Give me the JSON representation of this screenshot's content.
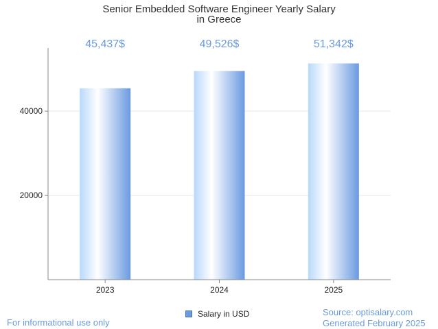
{
  "chart_data": {
    "type": "bar",
    "title_lines": [
      "Senior Embedded Software Engineer Yearly Salary",
      "in Greece"
    ],
    "categories": [
      "2023",
      "2024",
      "2025"
    ],
    "series": [
      {
        "name": "Salary in USD",
        "values": [
          45437,
          49526,
          51342
        ]
      }
    ],
    "data_labels": [
      "45,437$",
      "49,526$",
      "51,342$"
    ],
    "y_ticks": [
      20000,
      40000
    ],
    "ylim": [
      0,
      55000
    ],
    "legend_position": "bottom-center"
  },
  "footer": {
    "left": "For informational use only",
    "source": "Source: optisalary.com",
    "generated": "Generated February 2025"
  },
  "colors": {
    "bar_light": "#ffffff",
    "bar_mid": "#b8d8fb",
    "bar_dark": "#6a9ae0",
    "label": "#6a9ae0",
    "grid": "#e6e6e6",
    "axis": "#888888"
  }
}
